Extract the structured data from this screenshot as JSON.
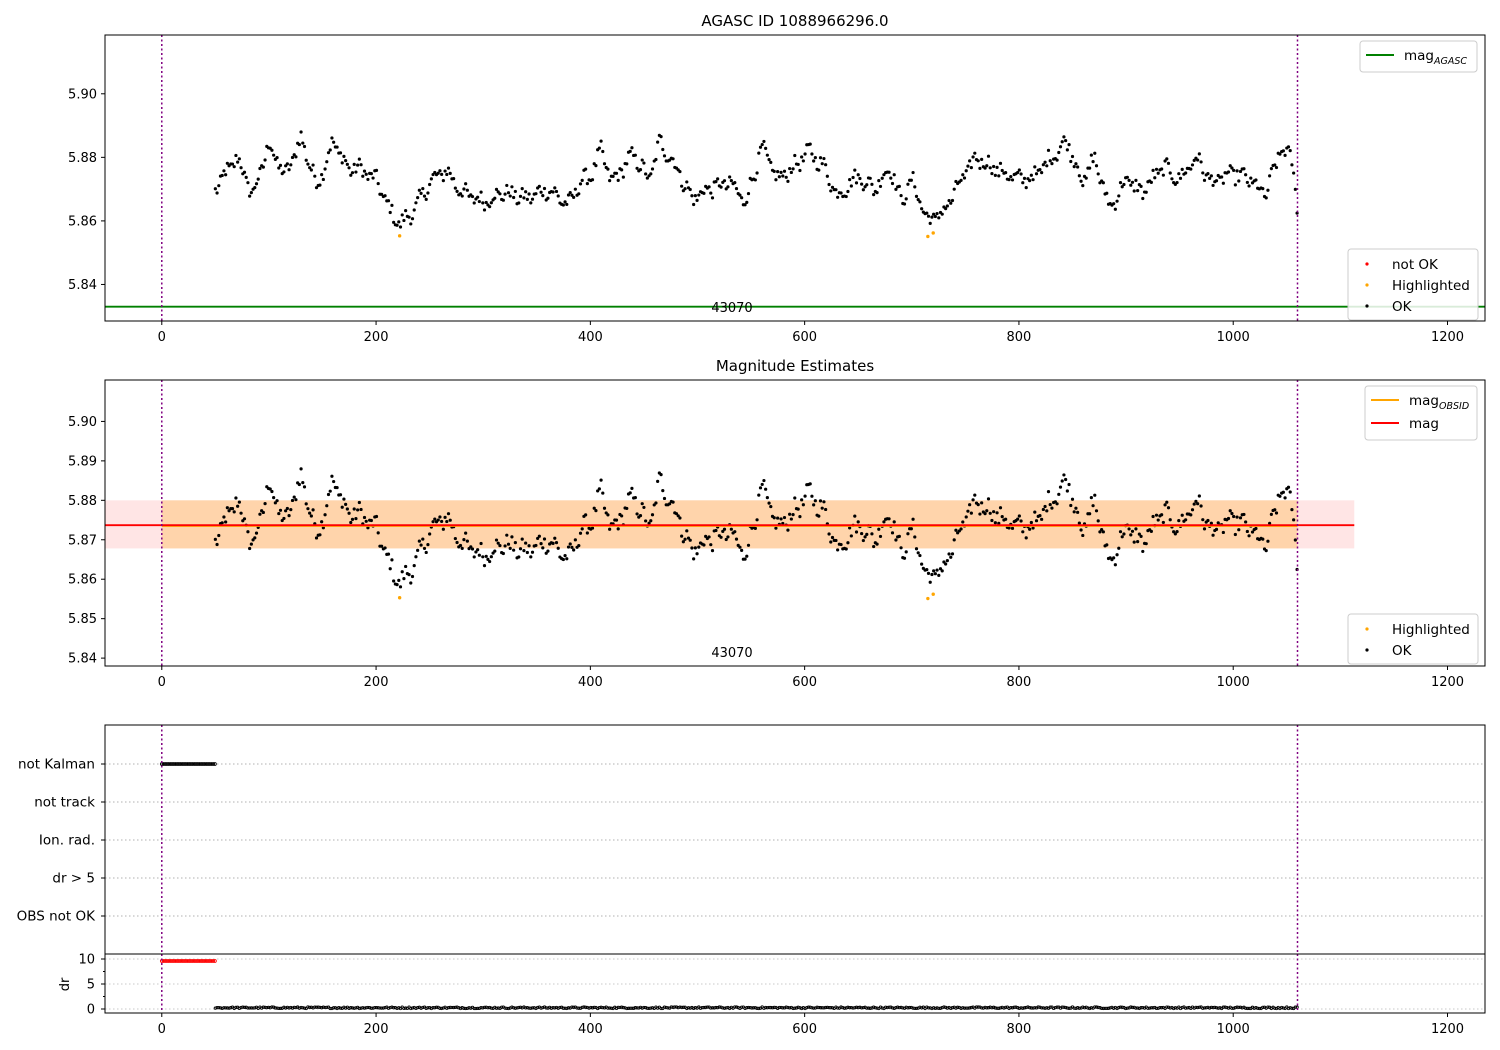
{
  "chart_data": [
    {
      "type": "scatter",
      "title": "AGASC ID 1088966296.0",
      "obsid_label": "43070",
      "xlim": [
        -53,
        1235
      ],
      "ylim": [
        5.8285,
        5.9185
      ],
      "x_ticks": [
        "0",
        "200",
        "400",
        "600",
        "800",
        "1000",
        "1200"
      ],
      "y_ticks": [
        "5.84",
        "5.86",
        "5.88",
        "5.90"
      ],
      "obs_boundaries": [
        0,
        1060
      ],
      "series": [
        {
          "name": "not OK",
          "color": "#ff0000",
          "points": []
        },
        {
          "name": "Highlighted",
          "color": "#ffa500",
          "points": [
            [
              222,
              5.8553
            ],
            [
              715,
              5.8551
            ],
            [
              720,
              5.8562
            ]
          ]
        },
        {
          "name": "OK",
          "color": "#000000",
          "trace_x_range": [
            50,
            1060
          ],
          "trace_keypoints": [
            [
              50,
              5.87
            ],
            [
              70,
              5.88
            ],
            [
              85,
              5.868
            ],
            [
              100,
              5.884
            ],
            [
              115,
              5.874
            ],
            [
              130,
              5.886
            ],
            [
              145,
              5.871
            ],
            [
              160,
              5.885
            ],
            [
              175,
              5.876
            ],
            [
              182,
              5.877
            ],
            [
              200,
              5.873
            ],
            [
              215,
              5.862
            ],
            [
              222,
              5.859
            ],
            [
              235,
              5.863
            ],
            [
              250,
              5.872
            ],
            [
              265,
              5.876
            ],
            [
              280,
              5.869
            ],
            [
              300,
              5.866
            ],
            [
              320,
              5.869
            ],
            [
              340,
              5.867
            ],
            [
              360,
              5.87
            ],
            [
              380,
              5.865
            ],
            [
              390,
              5.872
            ],
            [
              400,
              5.874
            ],
            [
              410,
              5.882
            ],
            [
              420,
              5.872
            ],
            [
              440,
              5.881
            ],
            [
              455,
              5.873
            ],
            [
              465,
              5.885
            ],
            [
              480,
              5.877
            ],
            [
              495,
              5.867
            ],
            [
              510,
              5.87
            ],
            [
              530,
              5.872
            ],
            [
              545,
              5.866
            ],
            [
              560,
              5.883
            ],
            [
              575,
              5.873
            ],
            [
              590,
              5.877
            ],
            [
              605,
              5.882
            ],
            [
              620,
              5.876
            ],
            [
              630,
              5.868
            ],
            [
              650,
              5.874
            ],
            [
              665,
              5.87
            ],
            [
              680,
              5.877
            ],
            [
              690,
              5.866
            ],
            [
              700,
              5.873
            ],
            [
              715,
              5.86
            ],
            [
              730,
              5.863
            ],
            [
              745,
              5.872
            ],
            [
              760,
              5.88
            ],
            [
              780,
              5.876
            ],
            [
              800,
              5.873
            ],
            [
              815,
              5.874
            ],
            [
              830,
              5.88
            ],
            [
              845,
              5.885
            ],
            [
              860,
              5.872
            ],
            [
              870,
              5.88
            ],
            [
              885,
              5.864
            ],
            [
              900,
              5.873
            ],
            [
              915,
              5.869
            ],
            [
              935,
              5.877
            ],
            [
              950,
              5.873
            ],
            [
              965,
              5.88
            ],
            [
              980,
              5.872
            ],
            [
              1000,
              5.875
            ],
            [
              1015,
              5.873
            ],
            [
              1030,
              5.868
            ],
            [
              1045,
              5.883
            ],
            [
              1055,
              5.879
            ],
            [
              1060,
              5.864
            ]
          ]
        }
      ],
      "reference_lines": [
        {
          "name": "mag_AGASC",
          "y": 5.833,
          "color": "#008000",
          "x_range": [
            -53,
            1235
          ]
        }
      ],
      "legend_lines": [
        {
          "label": "mag",
          "sub": "AGASC",
          "color": "#008000"
        }
      ],
      "legend_lines_placement": "top-right",
      "legend_points_placement": "bottom-right"
    },
    {
      "type": "scatter",
      "title": "Magnitude Estimates",
      "obsid_label": "43070",
      "xlim": [
        -53,
        1235
      ],
      "ylim": [
        5.838,
        5.9105
      ],
      "x_ticks": [
        "0",
        "200",
        "400",
        "600",
        "800",
        "1000",
        "1200"
      ],
      "y_ticks": [
        "5.84",
        "5.85",
        "5.86",
        "5.87",
        "5.88",
        "5.89",
        "5.90"
      ],
      "obs_boundaries": [
        0,
        1060
      ],
      "bands": [
        {
          "name": "mag_OBSID band",
          "y_range": [
            5.8678,
            5.88
          ],
          "x_range": [
            0,
            1060
          ],
          "color": "#ffa500",
          "opacity": 0.25
        },
        {
          "name": "mag band",
          "y_range": [
            5.8678,
            5.88
          ],
          "x_range": [
            -53,
            1113
          ],
          "color": "#ff0000",
          "opacity": 0.1
        }
      ],
      "reference_lines": [
        {
          "name": "mag_OBSID",
          "y": 5.8735,
          "color": "#ffa500",
          "x_range": [
            0,
            1060
          ]
        },
        {
          "name": "mag",
          "y": 5.8737,
          "color": "#ff0000",
          "x_range": [
            -53,
            1113
          ]
        }
      ],
      "series": [
        {
          "name": "Highlighted",
          "color": "#ffa500",
          "points": [
            [
              222,
              5.8553
            ],
            [
              715,
              5.8551
            ],
            [
              720,
              5.8562
            ]
          ]
        },
        {
          "name": "OK",
          "color": "#000000",
          "same_as_panel": 0
        }
      ],
      "legend_lines": [
        {
          "label": "mag",
          "sub": "OBSID",
          "color": "#ffa500"
        },
        {
          "label": "mag",
          "sub": "",
          "color": "#ff0000"
        }
      ],
      "legend_lines_placement": "top-right",
      "legend_points_placement": "bottom-right"
    },
    {
      "type": "scatter",
      "title": "",
      "xlim": [
        -53,
        1235
      ],
      "categories": [
        "not Kalman",
        "not track",
        "Ion. rad.",
        "dr > 5",
        "OBS not OK"
      ],
      "flag_series": [
        {
          "category": "not Kalman",
          "x_range": [
            0,
            50
          ],
          "color": "#000000"
        }
      ],
      "obs_boundaries": [
        0,
        1060
      ],
      "grid": true
    },
    {
      "type": "scatter",
      "title": "",
      "ylabel": "dr",
      "xlim": [
        -53,
        1235
      ],
      "ylim": [
        -0.8,
        11
      ],
      "x_ticks": [
        "0",
        "200",
        "400",
        "600",
        "800",
        "1000",
        "1200"
      ],
      "y_ticks": [
        "0",
        "5",
        "10"
      ],
      "obs_boundaries": [
        0,
        1060
      ],
      "series": [
        {
          "name": "dr (flagged)",
          "color": "#ff0000",
          "x_range": [
            0,
            50
          ],
          "value": 9.6
        },
        {
          "name": "dr",
          "color": "#000000",
          "x_range": [
            50,
            1060
          ],
          "value_range": [
            0.0,
            0.4
          ]
        }
      ],
      "grid": true
    }
  ]
}
